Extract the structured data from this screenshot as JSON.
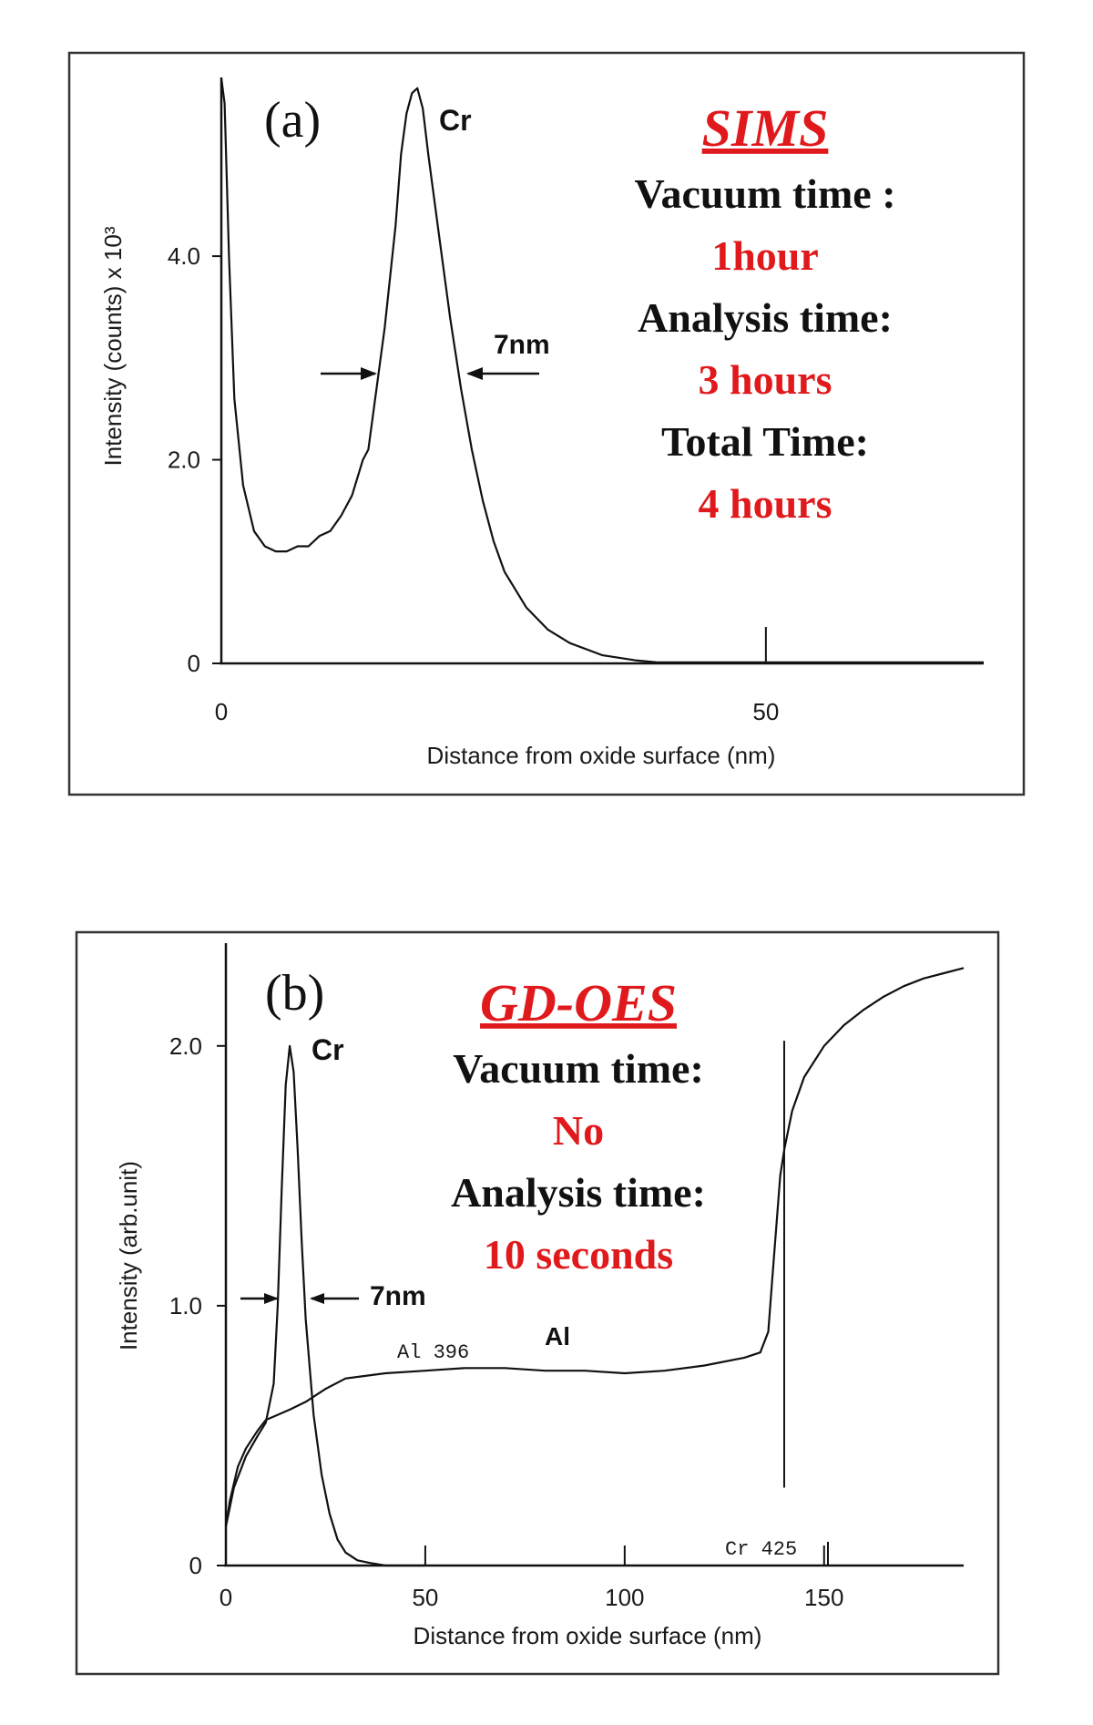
{
  "colors": {
    "accent": "#e0191c",
    "ink": "#111111",
    "frame": "#333333"
  },
  "chart_data": [
    {
      "type": "line",
      "panel": "(a)",
      "xlabel": "Distance from oxide surface (nm)",
      "ylabel": "Intensity (counts) x 10³",
      "xlim": [
        0,
        70
      ],
      "ylim": [
        0,
        5.8
      ],
      "x_ticks": [
        0,
        50
      ],
      "x_tick_labels": [
        "0",
        "50"
      ],
      "y_ticks": [
        0,
        2.0,
        4.0
      ],
      "y_tick_labels": [
        "0",
        "2.0",
        "4.0"
      ],
      "series": [
        {
          "name": "Cr",
          "x": [
            0,
            0.3,
            0.7,
            1.2,
            2,
            3,
            4,
            5,
            6,
            7,
            8,
            9,
            10,
            11,
            12,
            13,
            13.5,
            14,
            15,
            16,
            16.5,
            17,
            17.5,
            18,
            18.5,
            19,
            20,
            21,
            22,
            23,
            24,
            25,
            26,
            28,
            30,
            32,
            35,
            38,
            40,
            45,
            50,
            55,
            60,
            65,
            70
          ],
          "y": [
            5.75,
            5.5,
            4.0,
            2.6,
            1.75,
            1.3,
            1.15,
            1.1,
            1.1,
            1.15,
            1.15,
            1.25,
            1.3,
            1.45,
            1.65,
            2.0,
            2.1,
            2.5,
            3.3,
            4.3,
            5.0,
            5.4,
            5.6,
            5.65,
            5.45,
            5.0,
            4.2,
            3.4,
            2.7,
            2.1,
            1.6,
            1.2,
            0.9,
            0.55,
            0.33,
            0.2,
            0.08,
            0.03,
            0.01,
            0.01,
            0.01,
            0.01,
            0.01,
            0.01,
            0.01
          ]
        }
      ],
      "annotations": {
        "peak": "Cr",
        "fwhm": "7nm",
        "panel_label": "(a)"
      },
      "info_block": {
        "title": "SIMS",
        "lines": [
          {
            "text": "Vacuum time :",
            "style": "black"
          },
          {
            "text": "1hour",
            "style": "red"
          },
          {
            "text": "Analysis time:",
            "style": "black"
          },
          {
            "text": "3 hours",
            "style": "red"
          },
          {
            "text": "Total Time:",
            "style": "black"
          },
          {
            "text": "4 hours",
            "style": "red"
          }
        ]
      }
    },
    {
      "type": "line",
      "panel": "(b)",
      "xlabel": "Distance from oxide surface (nm)",
      "ylabel": "Intensity (arb.unit)",
      "xlim": [
        0,
        185
      ],
      "ylim": [
        0,
        2.35
      ],
      "x_ticks": [
        0,
        50,
        100,
        150
      ],
      "x_tick_labels": [
        "0",
        "50",
        "100",
        "150"
      ],
      "y_ticks": [
        0,
        1.0,
        2.0
      ],
      "y_tick_labels": [
        "0",
        "1.0",
        "2.0"
      ],
      "series": [
        {
          "name": "Cr",
          "x": [
            0,
            2,
            5,
            8,
            10,
            12,
            13,
            14,
            15,
            16,
            17,
            18,
            19,
            20,
            22,
            24,
            26,
            28,
            30,
            33,
            36,
            40,
            50,
            60,
            80,
            100,
            120,
            135,
            138,
            139,
            140,
            150,
            160,
            185
          ],
          "y": [
            0.15,
            0.3,
            0.42,
            0.5,
            0.55,
            0.7,
            1.0,
            1.45,
            1.85,
            2.0,
            1.9,
            1.6,
            1.25,
            0.95,
            0.58,
            0.35,
            0.2,
            0.1,
            0.05,
            0.02,
            0.01,
            0.0,
            0.0,
            0.0,
            0.0,
            0.0,
            0.0,
            0.0,
            0.0,
            0.3,
            2.0,
            2.0,
            2.0,
            2.0
          ]
        },
        {
          "name": "Al",
          "x": [
            0,
            1,
            3,
            5,
            8,
            10,
            13,
            16,
            20,
            25,
            30,
            40,
            50,
            60,
            70,
            80,
            90,
            100,
            110,
            120,
            130,
            134,
            136,
            137,
            138,
            139,
            140,
            142,
            145,
            150,
            155,
            160,
            165,
            170,
            175,
            180,
            185
          ],
          "y": [
            0.15,
            0.25,
            0.38,
            0.45,
            0.52,
            0.56,
            0.58,
            0.6,
            0.63,
            0.68,
            0.72,
            0.74,
            0.75,
            0.76,
            0.76,
            0.75,
            0.75,
            0.74,
            0.75,
            0.77,
            0.8,
            0.82,
            0.9,
            1.1,
            1.3,
            1.5,
            1.6,
            1.75,
            1.88,
            2.0,
            2.08,
            2.14,
            2.19,
            2.23,
            2.26,
            2.28,
            2.3
          ]
        }
      ],
      "annotations": {
        "peak": "Cr",
        "fwhm": "7nm",
        "panel_label": "(b)",
        "al_label": "Al",
        "al_channel": "Al 396",
        "cr_channel": "Cr 425"
      },
      "info_block": {
        "title": "GD-OES",
        "lines": [
          {
            "text": "Vacuum time:",
            "style": "black"
          },
          {
            "text": "No",
            "style": "red"
          },
          {
            "text": "Analysis time:",
            "style": "black"
          },
          {
            "text": "10 seconds",
            "style": "red"
          }
        ]
      }
    }
  ]
}
